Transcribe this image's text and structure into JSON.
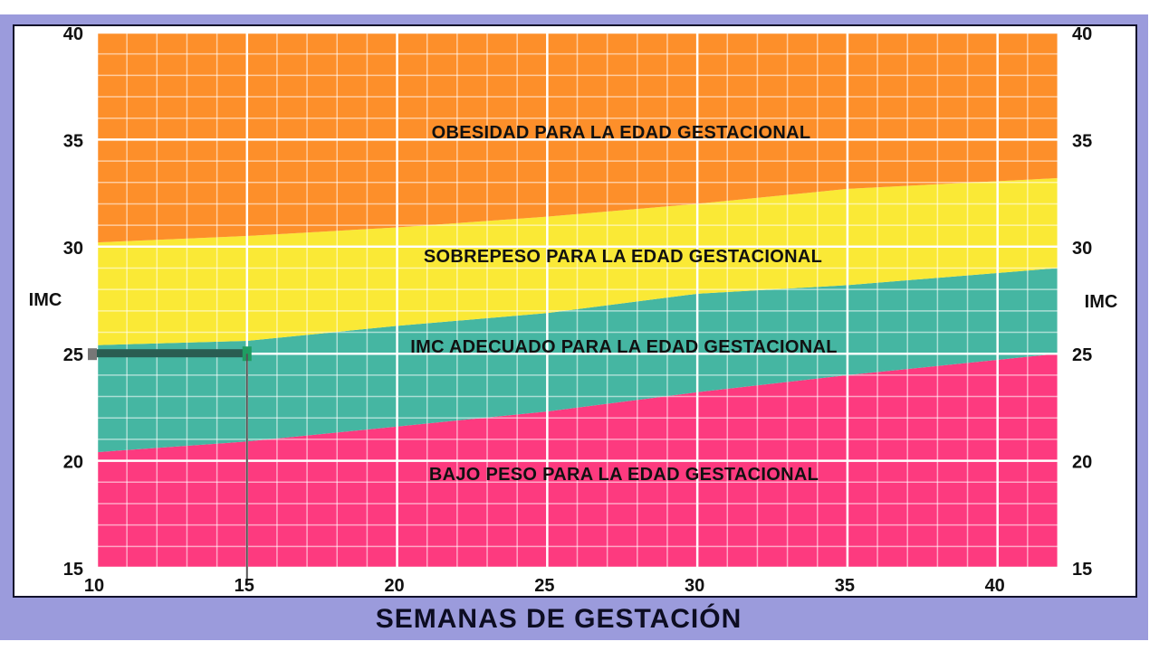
{
  "chart_data": {
    "type": "area",
    "title": "",
    "xlabel": "SEMANAS DE GESTACIÓN",
    "ylabel": "IMC",
    "xlim": [
      10,
      42
    ],
    "ylim": [
      15,
      40
    ],
    "x_ticks": [
      10,
      15,
      20,
      25,
      30,
      35,
      40
    ],
    "y_ticks": [
      15,
      20,
      25,
      30,
      35,
      40
    ],
    "grid": true,
    "x": [
      10,
      15,
      20,
      25,
      30,
      35,
      42
    ],
    "boundaries": [
      {
        "name": "bajo_peso_upper",
        "values": [
          20.4,
          20.9,
          21.6,
          22.3,
          23.2,
          24.0,
          25.0
        ]
      },
      {
        "name": "adecuado_upper",
        "values": [
          25.4,
          25.6,
          26.3,
          26.9,
          27.8,
          28.2,
          29.0
        ]
      },
      {
        "name": "sobrepeso_upper",
        "values": [
          30.2,
          30.5,
          30.9,
          31.4,
          32.0,
          32.7,
          33.2
        ]
      }
    ],
    "series": [
      {
        "name": "BAJO PESO PARA LA EDAD GESTACIONAL",
        "color": "#fd3a7f"
      },
      {
        "name": "IMC ADECUADO PARA LA EDAD GESTACIONAL",
        "color": "#45b6a2"
      },
      {
        "name": "SOBREPESO PARA LA EDAD GESTACIONAL",
        "color": "#fae936"
      },
      {
        "name": "OBESIDAD PARA LA EDAD GESTACIONAL",
        "color": "#fd8f2a"
      }
    ],
    "annotations": [
      {
        "type": "marker",
        "x": 15,
        "y": 25,
        "description": "línea de referencia en semana 15, IMC 25"
      }
    ]
  },
  "labels": {
    "obesidad": "OBESIDAD PARA LA EDAD GESTACIONAL",
    "sobrepeso": "SOBREPESO PARA LA EDAD GESTACIONAL",
    "adecuado": "IMC ADECUADO PARA LA EDAD GESTACIONAL",
    "bajo_peso": "BAJO PESO PARA LA EDAD GESTACIONAL",
    "y_axis_left": "IMC",
    "y_axis_right": "IMC",
    "x_axis_title": "SEMANAS DE GESTACIÓN"
  }
}
